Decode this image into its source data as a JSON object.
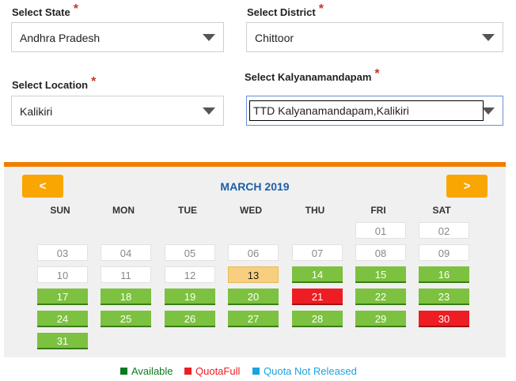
{
  "form": {
    "state": {
      "label": "Select State",
      "required": "*",
      "value": "Andhra Pradesh"
    },
    "district": {
      "label": "Select District",
      "required": "*",
      "value": "Chittoor"
    },
    "location": {
      "label": "Select Location",
      "required": "*",
      "value": "Kalikiri"
    },
    "kalyanamandapam": {
      "label": "Select Kalyanamandapam",
      "required": "*",
      "value": "TTD Kalyanamandapam,Kalikiri"
    }
  },
  "calendar": {
    "month": "MARCH 2019",
    "prev_label": "<",
    "next_label": ">",
    "weekdays": [
      "SUN",
      "MON",
      "TUE",
      "WED",
      "THU",
      "FRI",
      "SAT"
    ],
    "days": [
      {
        "label": "01",
        "status": "disabled"
      },
      {
        "label": "02",
        "status": "disabled"
      },
      {
        "label": "03",
        "status": "disabled"
      },
      {
        "label": "04",
        "status": "disabled"
      },
      {
        "label": "05",
        "status": "disabled"
      },
      {
        "label": "06",
        "status": "disabled"
      },
      {
        "label": "07",
        "status": "disabled"
      },
      {
        "label": "08",
        "status": "disabled"
      },
      {
        "label": "09",
        "status": "disabled"
      },
      {
        "label": "10",
        "status": "disabled"
      },
      {
        "label": "11",
        "status": "disabled"
      },
      {
        "label": "12",
        "status": "disabled"
      },
      {
        "label": "13",
        "status": "today"
      },
      {
        "label": "14",
        "status": "available"
      },
      {
        "label": "15",
        "status": "available"
      },
      {
        "label": "16",
        "status": "available"
      },
      {
        "label": "17",
        "status": "available"
      },
      {
        "label": "18",
        "status": "available"
      },
      {
        "label": "19",
        "status": "available"
      },
      {
        "label": "20",
        "status": "available"
      },
      {
        "label": "21",
        "status": "full"
      },
      {
        "label": "22",
        "status": "available"
      },
      {
        "label": "23",
        "status": "available"
      },
      {
        "label": "24",
        "status": "available"
      },
      {
        "label": "25",
        "status": "available"
      },
      {
        "label": "26",
        "status": "available"
      },
      {
        "label": "27",
        "status": "available"
      },
      {
        "label": "28",
        "status": "available"
      },
      {
        "label": "29",
        "status": "available"
      },
      {
        "label": "30",
        "status": "full"
      },
      {
        "label": "31",
        "status": "available"
      }
    ]
  },
  "legend": {
    "available": {
      "label": "Available",
      "color": "#0a7a1e"
    },
    "quota_full": {
      "label": "QuotaFull",
      "color": "#ee1d23"
    },
    "not_released": {
      "label": "Quota Not Released",
      "color": "#1aa3e0"
    }
  },
  "colors": {
    "accent": "#f07d00",
    "nav_button": "#f9a602",
    "month_title": "#1b5fa8",
    "available": "#7cc140",
    "full": "#ee1d23",
    "today": "#f7cf7e"
  }
}
